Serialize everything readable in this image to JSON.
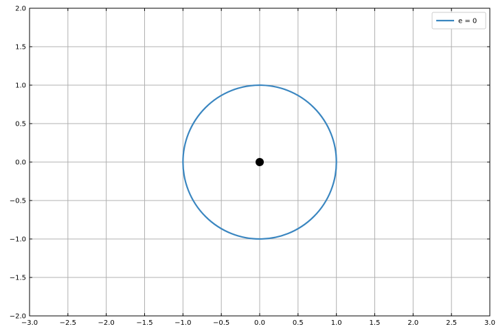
{
  "chart_data": {
    "type": "line",
    "title": "",
    "xlabel": "",
    "ylabel": "",
    "xlim": [
      -3.0,
      3.0
    ],
    "ylim": [
      -2.0,
      2.0
    ],
    "xticks": [
      -3.0,
      -2.5,
      -2.0,
      -1.5,
      -1.0,
      -0.5,
      0.0,
      0.5,
      1.0,
      1.5,
      2.0,
      2.5,
      3.0
    ],
    "xtick_labels": [
      "−3.0",
      "−2.5",
      "−2.0",
      "−1.5",
      "−1.0",
      "−0.5",
      "0.0",
      "0.5",
      "1.0",
      "1.5",
      "2.0",
      "2.5",
      "3.0"
    ],
    "yticks": [
      -2.0,
      -1.5,
      -1.0,
      -0.5,
      0.0,
      0.5,
      1.0,
      1.5,
      2.0
    ],
    "ytick_labels": [
      "−2.0",
      "−1.5",
      "−1.0",
      "−0.5",
      "0.0",
      "0.5",
      "1.0",
      "1.5",
      "2.0"
    ],
    "grid": true,
    "legend_position": "top-right",
    "series": [
      {
        "name": "e = 0",
        "color": "#3a86c0",
        "shape": "circle",
        "center": [
          0.0,
          0.0
        ],
        "radius": 1.0,
        "points": [
          [
            1.0,
            0.0
          ],
          [
            0.866,
            0.5
          ],
          [
            0.5,
            0.866
          ],
          [
            0.0,
            1.0
          ],
          [
            -0.5,
            0.866
          ],
          [
            -0.866,
            0.5
          ],
          [
            -1.0,
            0.0
          ],
          [
            -0.866,
            -0.5
          ],
          [
            -0.5,
            -0.866
          ],
          [
            0.0,
            -1.0
          ],
          [
            0.5,
            -0.866
          ],
          [
            0.866,
            -0.5
          ],
          [
            1.0,
            0.0
          ]
        ]
      }
    ],
    "markers": [
      {
        "x": 0.0,
        "y": 0.0,
        "color": "#000000"
      }
    ],
    "colors": {
      "grid": "#b0b0b0",
      "axes": "#000000"
    }
  }
}
